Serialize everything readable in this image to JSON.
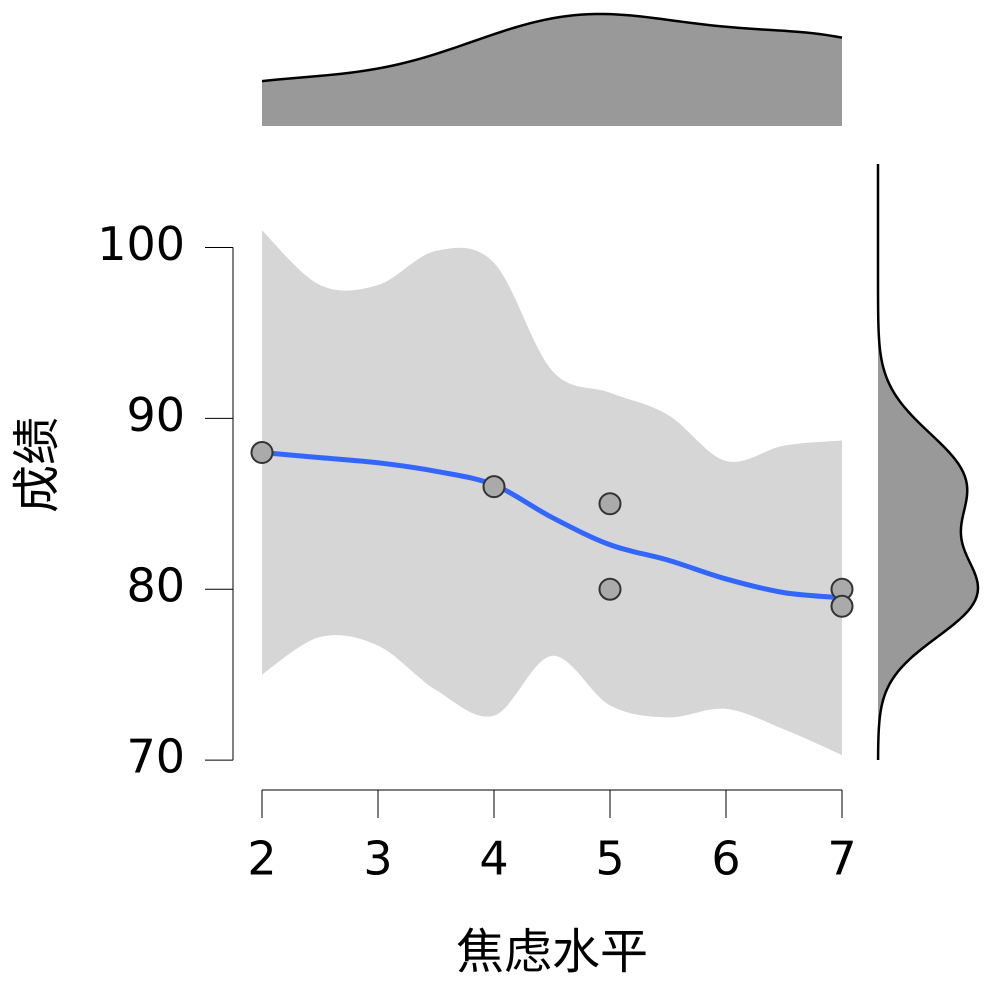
{
  "chart_data": {
    "type": "scatter",
    "x_label": "焦虑水平",
    "y_label": "成绩",
    "x": [
      2,
      4,
      5,
      5,
      7,
      7
    ],
    "values": [
      88,
      86,
      85,
      80,
      80,
      79
    ],
    "point_color": "#aaaaaa",
    "xlim": [
      1.75,
      7.25
    ],
    "ylim": [
      68.25,
      105
    ],
    "xticks": [
      2,
      3,
      4,
      5,
      6,
      7
    ],
    "yticks": [
      70,
      80,
      90,
      100
    ],
    "smooth": {
      "color": "#3366ff",
      "band_color": "#d6d6d6",
      "x": [
        2,
        2.5,
        3,
        3.5,
        4,
        4.5,
        5,
        5.5,
        6,
        6.5,
        7
      ],
      "values": [
        88,
        87.7,
        87.4,
        86.9,
        86.1,
        84.2,
        82.6,
        81.7,
        80.6,
        79.8,
        79.5
      ],
      "upper": [
        101.0,
        97.8,
        97.8,
        99.8,
        99.1,
        92.8,
        91.5,
        90.2,
        87.5,
        88.4,
        88.7
      ],
      "lower": [
        75.0,
        77.2,
        76.7,
        74.1,
        72.6,
        76.1,
        73.2,
        72.5,
        73.0,
        71.8,
        70.3
      ]
    },
    "marginal_color": "#999999"
  }
}
